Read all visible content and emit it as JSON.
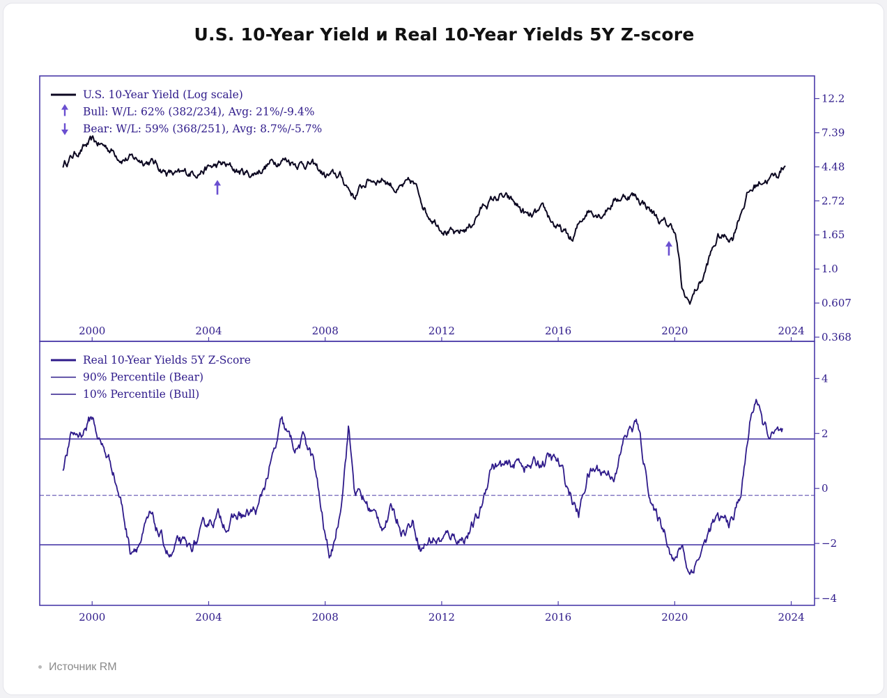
{
  "title": "U.S. 10-Year Yield и Real 10-Year Yields 5Y Z-score",
  "source": "Источник RM",
  "colors": {
    "line_top": "#0b0620",
    "line_bottom": "#2e1a8a",
    "frame": "#4a3aa8",
    "marker": "#6a4fd0",
    "text": "#2e1a8a"
  },
  "chart_data": [
    {
      "type": "line",
      "yscale": "log",
      "legend": [
        {
          "label": "U.S. 10-Year Yield (Log scale)"
        },
        {
          "label": "Bull:   W/L: 62% (382/234), Avg: 21%/-9.4%"
        },
        {
          "label": "Bear:   W/L: 59% (368/251), Avg: 8.7%/-5.7%"
        }
      ],
      "xlim": [
        1998.2,
        2024.8
      ],
      "ylim": [
        0.368,
        16
      ],
      "x_ticks": [
        2000,
        2004,
        2008,
        2012,
        2016,
        2020,
        2024
      ],
      "y_ticks": [
        {
          "v": 12.2,
          "label": "12.2"
        },
        {
          "v": 7.39,
          "label": "7.39"
        },
        {
          "v": 4.48,
          "label": "4.48"
        },
        {
          "v": 2.72,
          "label": "2.72"
        },
        {
          "v": 1.65,
          "label": "1.65"
        },
        {
          "v": 1.0,
          "label": "1.0"
        },
        {
          "v": 0.607,
          "label": "0.607"
        },
        {
          "v": 0.368,
          "label": "0.368"
        }
      ],
      "series": [
        {
          "x": [
            1999.0,
            1999.5,
            2000.0,
            2000.5,
            2001.0,
            2001.5,
            2002.0,
            2002.5,
            2003.0,
            2003.5,
            2004.0,
            2004.5,
            2005.0,
            2005.5,
            2006.0,
            2006.5,
            2007.0,
            2007.5,
            2008.0,
            2008.5,
            2009.0,
            2009.5,
            2010.0,
            2010.5,
            2011.0,
            2011.5,
            2012.0,
            2012.5,
            2013.0,
            2013.5,
            2014.0,
            2014.5,
            2015.0,
            2015.5,
            2016.0,
            2016.5,
            2017.0,
            2017.5,
            2018.0,
            2018.5,
            2019.0,
            2019.5,
            2020.0,
            2020.25,
            2020.5,
            2021.0,
            2021.5,
            2022.0,
            2022.5,
            2023.0,
            2023.5,
            2023.8
          ],
          "y": [
            4.6,
            5.6,
            6.4,
            6.0,
            5.2,
            5.0,
            4.9,
            4.2,
            3.9,
            4.2,
            4.4,
            4.6,
            4.2,
            4.0,
            4.6,
            5.1,
            4.8,
            4.7,
            3.9,
            3.9,
            2.9,
            3.7,
            3.8,
            3.2,
            3.5,
            2.3,
            1.9,
            1.6,
            1.9,
            2.6,
            2.9,
            2.6,
            2.1,
            2.3,
            1.8,
            1.5,
            2.4,
            2.3,
            2.8,
            3.0,
            2.6,
            2.0,
            1.8,
            0.7,
            0.6,
            0.9,
            1.6,
            1.6,
            3.0,
            3.7,
            3.9,
            4.7
          ]
        }
      ],
      "bull_markers": [
        {
          "x": 2004.3,
          "y": 3.3
        },
        {
          "x": 2019.8,
          "y": 1.35
        }
      ]
    },
    {
      "type": "line",
      "legend": [
        {
          "label": "Real 10-Year Yields 5Y Z-Score"
        },
        {
          "label": "90% Percentile (Bear)"
        },
        {
          "label": "10% Percentile (Bull)"
        }
      ],
      "xlim": [
        1998.2,
        2024.8
      ],
      "ylim": [
        -4.1,
        5.2
      ],
      "x_ticks": [
        2000,
        2004,
        2008,
        2012,
        2016,
        2020,
        2024
      ],
      "y_ticks": [
        {
          "v": 4,
          "label": "4"
        },
        {
          "v": 2,
          "label": "2"
        },
        {
          "v": 0,
          "label": "0"
        },
        {
          "v": -2,
          "label": "−2"
        },
        {
          "v": -4,
          "label": "−4"
        }
      ],
      "bear_level": 1.8,
      "bull_level": -2.05,
      "zero_level": -0.25,
      "series": [
        {
          "x": [
            1999.0,
            1999.3,
            1999.6,
            2000.0,
            2000.3,
            2000.7,
            2001.0,
            2001.3,
            2001.7,
            2002.0,
            2002.3,
            2002.7,
            2003.0,
            2003.3,
            2003.7,
            2004.0,
            2004.3,
            2004.7,
            2005.0,
            2005.3,
            2005.7,
            2006.0,
            2006.3,
            2006.5,
            2006.8,
            2007.0,
            2007.3,
            2007.6,
            2008.0,
            2008.2,
            2008.5,
            2008.8,
            2009.0,
            2009.3,
            2009.7,
            2010.0,
            2010.3,
            2010.7,
            2011.0,
            2011.3,
            2011.7,
            2012.0,
            2012.3,
            2012.7,
            2013.0,
            2013.3,
            2013.7,
            2014.0,
            2014.3,
            2014.7,
            2015.0,
            2015.3,
            2015.7,
            2016.0,
            2016.3,
            2016.7,
            2017.0,
            2017.3,
            2017.7,
            2018.0,
            2018.3,
            2018.7,
            2019.0,
            2019.3,
            2019.7,
            2020.0,
            2020.25,
            2020.5,
            2021.0,
            2021.3,
            2021.7,
            2022.0,
            2022.3,
            2022.6,
            2022.8,
            2023.0,
            2023.3,
            2023.7
          ],
          "y": [
            0.8,
            1.9,
            2.0,
            2.6,
            1.6,
            0.8,
            -0.5,
            -2.2,
            -1.8,
            -1.1,
            -1.7,
            -2.5,
            -2.0,
            -2.3,
            -1.8,
            -1.2,
            -1.0,
            -1.3,
            -1.0,
            -1.0,
            -0.8,
            0.4,
            1.4,
            2.3,
            1.7,
            1.4,
            1.8,
            1.0,
            -1.8,
            -2.6,
            -0.9,
            2.3,
            0.0,
            -0.4,
            -1.0,
            -1.3,
            -0.8,
            -1.5,
            -1.2,
            -2.1,
            -1.8,
            -1.9,
            -1.7,
            -1.8,
            -1.5,
            -1.0,
            0.9,
            0.8,
            0.7,
            1.0,
            0.8,
            0.9,
            1.1,
            0.9,
            0.1,
            -1.0,
            0.5,
            0.7,
            0.6,
            0.6,
            1.9,
            2.4,
            0.6,
            -0.9,
            -1.6,
            -2.7,
            -2.0,
            -3.1,
            -2.1,
            -1.3,
            -1.2,
            -1.2,
            0.0,
            2.5,
            3.4,
            2.3,
            1.9,
            1.9
          ]
        }
      ]
    }
  ]
}
